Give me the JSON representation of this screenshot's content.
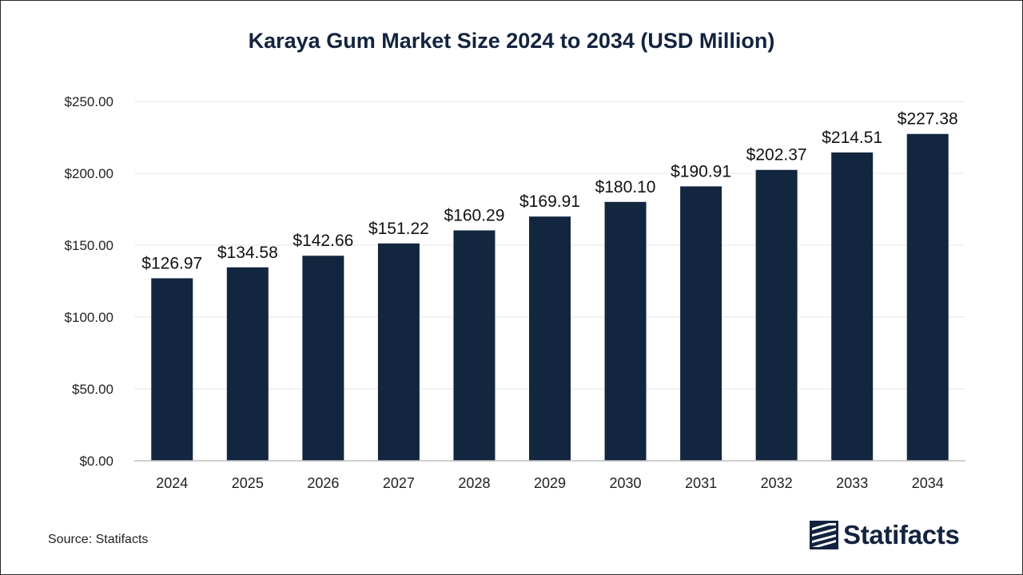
{
  "chart_data": {
    "type": "bar",
    "title": "Karaya Gum Market Size 2024 to 2034 (USD Million)",
    "categories": [
      "2024",
      "2025",
      "2026",
      "2027",
      "2028",
      "2029",
      "2030",
      "2031",
      "2032",
      "2033",
      "2034"
    ],
    "values": [
      126.97,
      134.58,
      142.66,
      151.22,
      160.29,
      169.91,
      180.1,
      190.91,
      202.37,
      214.51,
      227.38
    ],
    "value_labels": [
      "$126.97",
      "$134.58",
      "$142.66",
      "$151.22",
      "$160.29",
      "$169.91",
      "$180.10",
      "$190.91",
      "$202.37",
      "$214.51",
      "$227.38"
    ],
    "y_ticks": [
      0,
      50,
      100,
      150,
      200,
      250
    ],
    "y_tick_labels": [
      "$0.00",
      "$50.00",
      "$100.00",
      "$150.00",
      "$200.00",
      "$250.00"
    ],
    "ylim": [
      0,
      250
    ],
    "xlabel": "",
    "ylabel": "",
    "grid": true,
    "legend": "none",
    "bar_color": "#13263f"
  },
  "footer": {
    "source": "Source: Statifacts",
    "brand": "Statifacts"
  },
  "colors": {
    "title": "#13233f",
    "brand": "#13233f",
    "grid": "#e6e6e6",
    "axis": "#bfbfbf"
  },
  "icons": {
    "brand_logo": "statifacts-logo-icon"
  }
}
